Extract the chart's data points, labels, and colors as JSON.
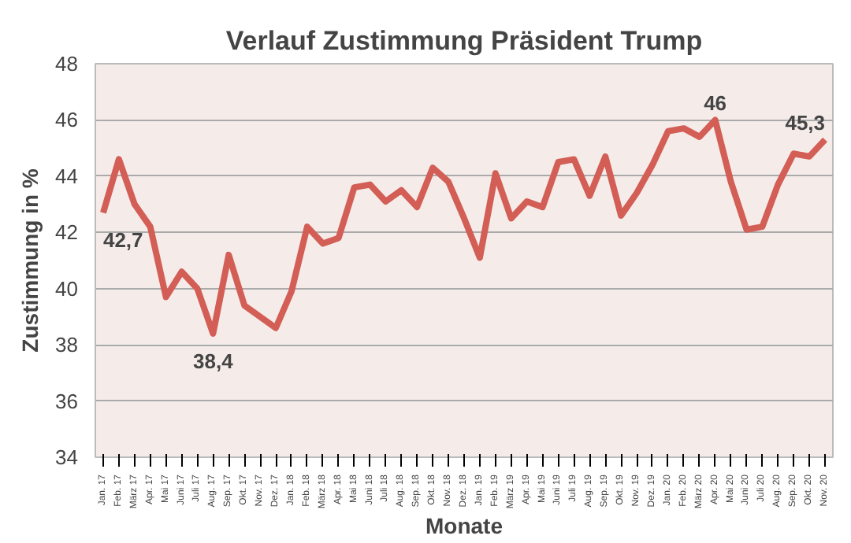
{
  "chart_data": {
    "type": "line",
    "title": "Verlauf Zustimmung Präsident Trump",
    "xlabel": "Monate",
    "ylabel": "Zustimmung in %",
    "categories": [
      "Jan. 17",
      "Feb. 17",
      "März 17",
      "Apr. 17",
      "Mai 17",
      "Juni 17",
      "Juli 17",
      "Aug. 17",
      "Sep. 17",
      "Okt. 17",
      "Nov. 17",
      "Dez. 17",
      "Jan. 18",
      "Feb. 18",
      "März 18",
      "Apr. 18",
      "Mai 18",
      "Juni 18",
      "Juli 18",
      "Aug. 18",
      "Sep. 18",
      "Okt. 18",
      "Nov. 18",
      "Dez. 18",
      "Jan. 19",
      "Feb. 19",
      "März 19",
      "Apr. 19",
      "Mai 19",
      "Juni 19",
      "Juli 19",
      "Aug. 19",
      "Sep. 19",
      "Okt. 19",
      "Nov. 19",
      "Dez. 19",
      "Jan. 20",
      "Feb. 20",
      "März 20",
      "Apr. 20",
      "Mai 20",
      "Juni 20",
      "Juli 20",
      "Aug. 20",
      "Sep. 20",
      "Okt. 20",
      "Nov. 20"
    ],
    "series": [
      {
        "color": "#d35e56",
        "values": [
          42.7,
          44.6,
          43.0,
          42.2,
          39.7,
          40.6,
          40.0,
          38.4,
          41.2,
          39.4,
          39.0,
          38.6,
          39.9,
          42.2,
          41.6,
          41.8,
          43.6,
          43.7,
          43.1,
          43.5,
          42.9,
          44.3,
          43.8,
          42.5,
          41.1,
          44.1,
          42.5,
          43.1,
          42.9,
          44.5,
          44.6,
          43.3,
          44.7,
          42.6,
          43.4,
          44.4,
          45.6,
          45.7,
          45.4,
          46.0,
          43.8,
          42.1,
          42.2,
          43.7,
          44.8,
          44.7,
          45.3
        ],
        "value_labels": [
          "42,7",
          null,
          null,
          null,
          null,
          null,
          null,
          "38,4",
          null,
          null,
          null,
          null,
          null,
          null,
          null,
          null,
          null,
          null,
          null,
          null,
          null,
          null,
          null,
          null,
          null,
          null,
          null,
          null,
          null,
          null,
          null,
          null,
          null,
          null,
          null,
          null,
          null,
          null,
          null,
          "46",
          null,
          null,
          null,
          null,
          null,
          null,
          "45,3"
        ]
      }
    ],
    "ylim": [
      34,
      48
    ],
    "yticks": [
      34,
      36,
      38,
      40,
      42,
      44,
      46,
      48
    ],
    "grid": "y",
    "marker": "none",
    "line_style": "solid"
  }
}
